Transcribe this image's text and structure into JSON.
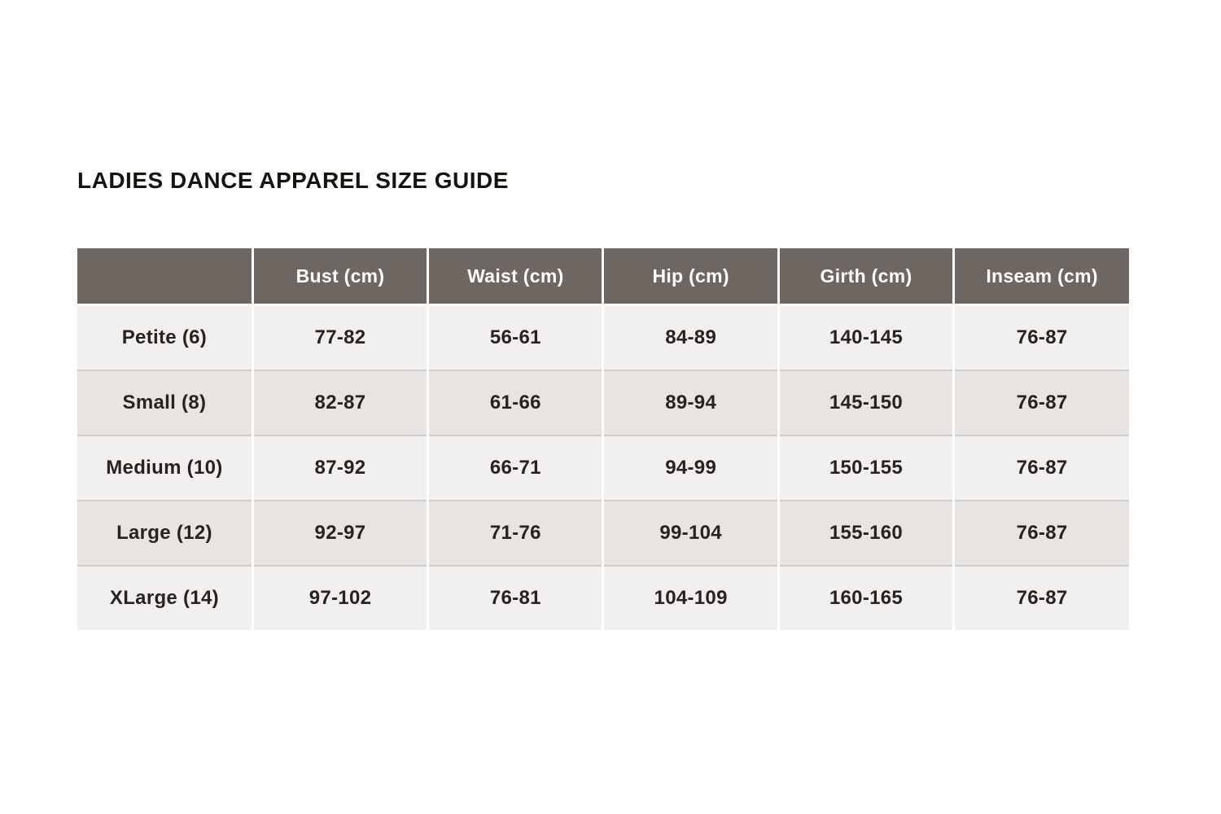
{
  "title": "LADIES DANCE APPAREL SIZE GUIDE",
  "table": {
    "colors": {
      "header_bg": "#6e6661",
      "header_text": "#ffffff",
      "row_light_bg": "#f2f0ee",
      "row_dark_bg": "#e7e4e1",
      "cell_text": "#282321",
      "row_divider": "#cfccc9",
      "column_gap": "#ffffff"
    },
    "columns": [
      "",
      "Bust (cm)",
      "Waist (cm)",
      "Hip (cm)",
      "Girth (cm)",
      "Inseam (cm)"
    ],
    "rows": [
      {
        "label": "Petite (6)",
        "values": [
          "77-82",
          "56-61",
          "84-89",
          "140-145",
          "76-87"
        ]
      },
      {
        "label": "Small (8)",
        "values": [
          "82-87",
          "61-66",
          "89-94",
          "145-150",
          "76-87"
        ]
      },
      {
        "label": "Medium (10)",
        "values": [
          "87-92",
          "66-71",
          "94-99",
          "150-155",
          "76-87"
        ]
      },
      {
        "label": "Large (12)",
        "values": [
          "92-97",
          "71-76",
          "99-104",
          "155-160",
          "76-87"
        ]
      },
      {
        "label": "XLarge (14)",
        "values": [
          "97-102",
          "76-81",
          "104-109",
          "160-165",
          "76-87"
        ]
      }
    ]
  }
}
